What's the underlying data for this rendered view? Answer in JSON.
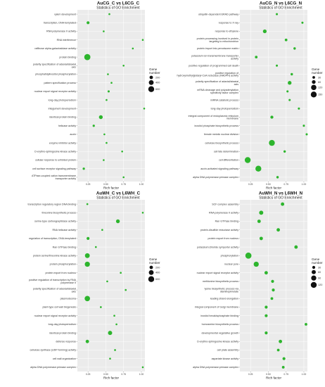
{
  "colors": {
    "point": "#2db52d",
    "panel_bg": "#ebebeb",
    "grid": "#ffffff"
  },
  "chart_data": [
    {
      "type": "scatter",
      "title": "AuCG_C vs L6CG_C",
      "subtitle": "Statistics of GO Enrichment",
      "xlabel": "Rich factor",
      "xticks": [
        "0.25",
        "0.50",
        "0.75",
        "1.00"
      ],
      "xlim": [
        0.1,
        1.05
      ],
      "legend": {
        "title": "Gene number",
        "values": [
          200,
          400,
          600
        ],
        "position": "right"
      },
      "categories": [
        "xylem development",
        "transcription, DNA-templated",
        "RNA polymerase II activity",
        "RNA interference",
        "raffinose alpha-galactosidase activity",
        "protein binding",
        "polarity specification of adaxial/abaxial axis",
        "phosphatidylinositol phosphorylation",
        "pattern specification process",
        "nuclear export signal receptor activity",
        "long-day photoperiodism",
        "integument development",
        "identical protein binding",
        "helicase activity",
        "auxin",
        "enzyme inhibitor activity",
        "D-erythro-sphingosine kinase activity",
        "cellular response to unfolded protein",
        "cell surface receptor signaling pathway",
        "ATPase-coupled cation transmembrane transporter activity"
      ],
      "points": [
        {
          "x": 0.55,
          "n": 30
        },
        {
          "x": 0.25,
          "n": 150
        },
        {
          "x": 0.47,
          "n": 40
        },
        {
          "x": 1.02,
          "n": 25
        },
        {
          "x": 0.88,
          "n": 20
        },
        {
          "x": 0.24,
          "n": 650
        },
        {
          "x": 0.75,
          "n": 60
        },
        {
          "x": 0.53,
          "n": 35
        },
        {
          "x": 0.58,
          "n": 30
        },
        {
          "x": 0.54,
          "n": 80
        },
        {
          "x": 0.51,
          "n": 50
        },
        {
          "x": 1.04,
          "n": 25
        },
        {
          "x": 0.43,
          "n": 250
        },
        {
          "x": 0.33,
          "n": 90
        },
        {
          "x": 0.48,
          "n": 40
        },
        {
          "x": 0.51,
          "n": 40
        },
        {
          "x": 0.73,
          "n": 35
        },
        {
          "x": 0.47,
          "n": 30
        },
        {
          "x": 0.19,
          "n": 90
        },
        {
          "x": 0.75,
          "n": 25
        }
      ]
    },
    {
      "type": "scatter",
      "title": "AuCG_N vs L6CG_N",
      "subtitle": "Statistics of GO Enrichment",
      "xlabel": "Rich factor",
      "xticks": [
        "0.25",
        "0.50",
        "0.75",
        "1.00"
      ],
      "xlim": [
        0.1,
        1.05
      ],
      "legend": {
        "title": "Gene number",
        "values": [
          30,
          60,
          120,
          150
        ],
        "position": "right"
      },
      "categories": [
        "ubiquitin-dependent ERAD pathway",
        "response to X-ray",
        "response to ethylene",
        "protein processing involved in protein targeting to mitochondrion",
        "protein import into peroxisome matrix",
        "potassium ion transmembrane transporter activity",
        "positive regulation of programmed cell death",
        "positive regulation of hydroxymethylglutaryl-CoA reductase (NADPH) activity",
        "polarity specification of adaxial/abaxial axis",
        "mRNA cleavage and polyadenylation specificity factor complex",
        "miRNA catabolic process",
        "long-day photoperiodism",
        "integral component of endoplasmic reticulum membrane",
        "inositol phosphate biosynthetic process",
        "female meiotic nuclear division",
        "cellulose biosynthetic process",
        "cell fate determination",
        "cell differentiation",
        "auxin-activated signaling pathway",
        "alpha DNA polymerase:primase complex"
      ],
      "points": [
        {
          "x": 0.62,
          "n": 20
        },
        {
          "x": 0.98,
          "n": 20
        },
        {
          "x": 0.45,
          "n": 60
        },
        {
          "x": 0.75,
          "n": 30
        },
        {
          "x": 0.87,
          "n": 25
        },
        {
          "x": 0.33,
          "n": 30
        },
        {
          "x": 0.62,
          "n": 20
        },
        {
          "x": 0.83,
          "n": 25
        },
        {
          "x": 0.8,
          "n": 60
        },
        {
          "x": 0.77,
          "n": 20
        },
        {
          "x": 0.8,
          "n": 20
        },
        {
          "x": 0.93,
          "n": 20
        },
        {
          "x": 0.55,
          "n": 40
        },
        {
          "x": 1.0,
          "n": 20
        },
        {
          "x": 1.04,
          "n": 20
        },
        {
          "x": 0.55,
          "n": 150
        },
        {
          "x": 0.73,
          "n": 25
        },
        {
          "x": 0.21,
          "n": 150
        },
        {
          "x": 0.36,
          "n": 150
        },
        {
          "x": 0.63,
          "n": 25
        }
      ]
    },
    {
      "type": "scatter",
      "title": "AuWH_C vs L6WH_C",
      "subtitle": "Statistics of GO Enrichment",
      "xlabel": "Rich factor",
      "xticks": [
        "0.25",
        "0.50",
        "0.75",
        "1.00"
      ],
      "xlim": [
        0.1,
        1.05
      ],
      "legend": {
        "title": "Gene number",
        "values": [
          200,
          400,
          600
        ],
        "position": "right"
      },
      "categories": [
        "transcription regulatory region DNA binding",
        "threonine biosynthetic process",
        "serine-type carboxypeptidase activity",
        "RNA helicase activity",
        "regulation of transcription, DNA-templated",
        "Ran GTPase binding",
        "protein serine/threonine kinase activity",
        "protein phosphorylation",
        "protein export from nucleus",
        "positive regulation of transcription by RNA polymerase II",
        "polarity specification of adaxial/abaxial axis",
        "plasmodesma",
        "plant-type cell wall biogenesis",
        "nuclear export signal receptor activity",
        "long-day photoperiodism",
        "identical protein binding",
        "defense response",
        "cellulose synthase (UDP-forming) activity",
        "cell wall organization",
        "alpha DNA polymerase:primase complex"
      ],
      "points": [
        {
          "x": 0.24,
          "n": 60
        },
        {
          "x": 1.02,
          "n": 20
        },
        {
          "x": 0.67,
          "n": 250
        },
        {
          "x": 0.45,
          "n": 40
        },
        {
          "x": 0.25,
          "n": 150
        },
        {
          "x": 0.36,
          "n": 40
        },
        {
          "x": 0.24,
          "n": 400
        },
        {
          "x": 0.24,
          "n": 450
        },
        {
          "x": 0.71,
          "n": 30
        },
        {
          "x": 0.52,
          "n": 30
        },
        {
          "x": 0.78,
          "n": 60
        },
        {
          "x": 0.24,
          "n": 500
        },
        {
          "x": 0.43,
          "n": 60
        },
        {
          "x": 0.62,
          "n": 40
        },
        {
          "x": 0.65,
          "n": 40
        },
        {
          "x": 0.56,
          "n": 300
        },
        {
          "x": 0.24,
          "n": 200
        },
        {
          "x": 0.63,
          "n": 60
        },
        {
          "x": 0.56,
          "n": 40
        },
        {
          "x": 1.02,
          "n": 25
        }
      ]
    },
    {
      "type": "scatter",
      "title": "AuWH_N vs L6WH_N",
      "subtitle": "Statistics of GO Enrichment",
      "xlabel": "Rich factor",
      "xticks": [
        "0.25",
        "0.50",
        "0.75",
        "1.00"
      ],
      "xlim": [
        0.1,
        1.05
      ],
      "legend": {
        "title": "Gene number",
        "values": [
          30,
          60,
          90,
          120
        ],
        "position": "right"
      },
      "categories": [
        "SCF complex assembly",
        "RNA polymerase II activity",
        "Ran GTPase binding",
        "protein-disulfide reductase activity",
        "protein export from nucleus",
        "potassium:chloride symporter activity",
        "phosphorylation",
        "nuclear pore",
        "nuclear export signal receptor activity",
        "methionine biosynthetic process",
        "lysine biosynthetic process via diaminopimelate",
        "leading strand elongation",
        "integral component of Golgi membrane",
        "inositol hexakisphosphate binding",
        "homoserine biosynthetic process",
        "developmental vegetative growth",
        "D-erythro-sphingosine kinase activity",
        "cell plate assembly",
        "aspartate kinase activity",
        "alpha DNA polymerase:primase complex"
      ],
      "points": [
        {
          "x": 0.7,
          "n": 40
        },
        {
          "x": 0.4,
          "n": 60
        },
        {
          "x": 0.37,
          "n": 40
        },
        {
          "x": 0.64,
          "n": 40
        },
        {
          "x": 0.4,
          "n": 40
        },
        {
          "x": 0.89,
          "n": 40
        },
        {
          "x": 0.22,
          "n": 130
        },
        {
          "x": 0.33,
          "n": 90
        },
        {
          "x": 0.47,
          "n": 40
        },
        {
          "x": 0.56,
          "n": 30
        },
        {
          "x": 0.57,
          "n": 30
        },
        {
          "x": 0.55,
          "n": 25
        },
        {
          "x": 0.47,
          "n": 30
        },
        {
          "x": 0.47,
          "n": 30
        },
        {
          "x": 1.03,
          "n": 25
        },
        {
          "x": 0.47,
          "n": 30
        },
        {
          "x": 0.67,
          "n": 40
        },
        {
          "x": 0.64,
          "n": 25
        },
        {
          "x": 0.72,
          "n": 30
        },
        {
          "x": 0.71,
          "n": 25
        }
      ]
    }
  ]
}
